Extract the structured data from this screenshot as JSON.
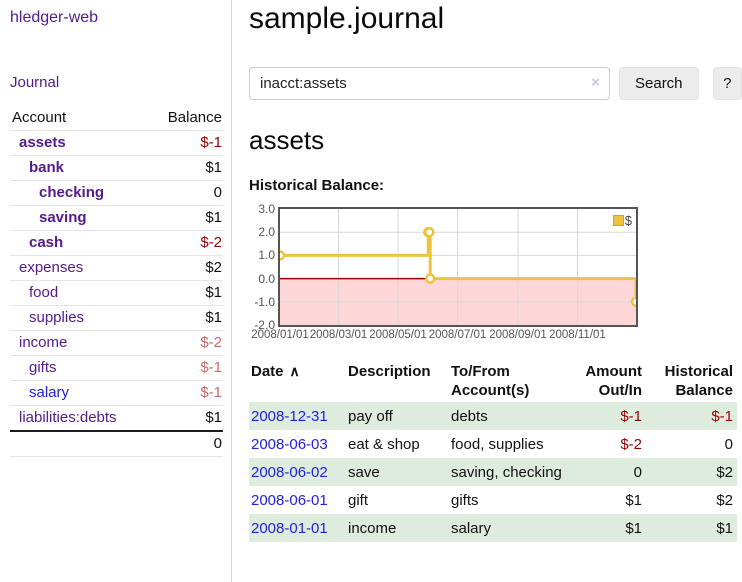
{
  "sidebar": {
    "brand": "hledger-web",
    "nav_journal": "Journal",
    "columns": {
      "account": "Account",
      "balance": "Balance"
    },
    "accounts": [
      {
        "name": "assets",
        "balance": "$-1"
      },
      {
        "name": "bank",
        "balance": "$1"
      },
      {
        "name": "checking",
        "balance": "0"
      },
      {
        "name": "saving",
        "balance": "$1"
      },
      {
        "name": "cash",
        "balance": "$-2"
      },
      {
        "name": "expenses",
        "balance": "$2"
      },
      {
        "name": "food",
        "balance": "$1"
      },
      {
        "name": "supplies",
        "balance": "$1"
      },
      {
        "name": "income",
        "balance": "$-2"
      },
      {
        "name": "gifts",
        "balance": "$-1"
      },
      {
        "name": "salary",
        "balance": "$-1"
      },
      {
        "name": "liabilities:debts",
        "balance": "$1"
      }
    ],
    "total": "0"
  },
  "main": {
    "title": "sample.journal",
    "search": {
      "value": "inacct:assets",
      "clear_icon": "×",
      "button": "Search",
      "help_button": "?"
    },
    "account_heading": "assets",
    "chart_label": "Historical Balance:"
  },
  "chart_data": {
    "type": "line",
    "step": true,
    "title": "Historical Balance",
    "series": [
      {
        "name": "$",
        "color": "#edc240",
        "points": [
          [
            "2008-01-01",
            1
          ],
          [
            "2008-06-01",
            2
          ],
          [
            "2008-06-02",
            2
          ],
          [
            "2008-06-03",
            0
          ],
          [
            "2008-12-31",
            -1
          ]
        ]
      }
    ],
    "x_range": [
      "2008-01-01",
      "2008-12-31"
    ],
    "y_range": [
      -2,
      3
    ],
    "y_ticks": [
      3.0,
      2.0,
      1.0,
      0.0,
      -1.0,
      -2.0
    ],
    "x_ticks": [
      {
        "date": "2008-01-01",
        "label": "2008/01/01"
      },
      {
        "date": "2008-03-01",
        "label": "2008/03/01"
      },
      {
        "date": "2008-05-01",
        "label": "2008/05/01"
      },
      {
        "date": "2008-07-01",
        "label": "2008/07/01"
      },
      {
        "date": "2008-09-01",
        "label": "2008/09/01"
      },
      {
        "date": "2008-11-01",
        "label": "2008/11/01"
      }
    ],
    "grid": true,
    "grid_color": "#d8d8d8",
    "zero_line_color": "#990000",
    "negative_region_fill": "#fdd7d7",
    "legend": {
      "position": "top-right",
      "label": "$",
      "swatch_color": "#edc240"
    }
  },
  "register": {
    "headers": {
      "date": "Date",
      "sort_indicator": "∧",
      "description": "Description",
      "accounts": "To/From Account(s)",
      "amount": "Amount Out/In",
      "balance": "Historical Balance"
    },
    "rows": [
      {
        "date": "2008-12-31",
        "description": "pay off",
        "accounts": "debts",
        "amount": "$-1",
        "balance": "$-1"
      },
      {
        "date": "2008-06-03",
        "description": "eat & shop",
        "accounts": "food, supplies",
        "amount": "$-2",
        "balance": "0"
      },
      {
        "date": "2008-06-02",
        "description": "save",
        "accounts": "saving, checking",
        "amount": "0",
        "balance": "$2"
      },
      {
        "date": "2008-06-01",
        "description": "gift",
        "accounts": "gifts",
        "amount": "$1",
        "balance": "$2"
      },
      {
        "date": "2008-01-01",
        "description": "income",
        "accounts": "salary",
        "amount": "$1",
        "balance": "$1"
      }
    ]
  },
  "theme": {
    "link_purple": "#551a8b",
    "link_blue": "#2222dd",
    "negative_red": "#990000",
    "negative_faded": "#cc6a6a",
    "row_green": "#deecde"
  }
}
